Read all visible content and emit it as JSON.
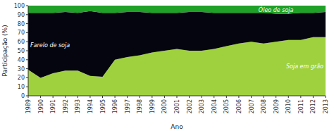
{
  "chart_data": {
    "type": "area",
    "stacked": true,
    "x": [
      1989,
      1990,
      1991,
      1992,
      1993,
      1994,
      1995,
      1996,
      1997,
      1998,
      1999,
      2000,
      2001,
      2002,
      2003,
      2004,
      2005,
      2006,
      2007,
      2008,
      2009,
      2010,
      2011,
      2012,
      2013
    ],
    "series": [
      {
        "name": "Soja em grão",
        "color": "#9fd13e",
        "values": [
          29,
          20,
          25,
          28,
          28,
          22,
          21,
          40,
          43,
          45,
          48,
          50,
          52,
          50,
          50,
          52,
          55,
          58,
          60,
          58,
          60,
          62,
          62,
          65,
          65
        ]
      },
      {
        "name": "Farelo de soja",
        "color": "#050510",
        "values": [
          63,
          72,
          67,
          65,
          64,
          72,
          71,
          52,
          50,
          48,
          44,
          42,
          40,
          43,
          43,
          40,
          37,
          34,
          32,
          34,
          31,
          29,
          30,
          27,
          28
        ]
      },
      {
        "name": "Óleo de soja",
        "color": "#1fa026",
        "values": [
          8,
          8,
          8,
          7,
          8,
          6,
          8,
          8,
          7,
          7,
          8,
          8,
          8,
          7,
          7,
          8,
          8,
          8,
          8,
          8,
          9,
          9,
          8,
          8,
          7
        ]
      }
    ],
    "x_label": "Ano",
    "y_label": "Participação (%)",
    "xlim": [
      1989,
      2013
    ],
    "xticks": [
      1989,
      1990,
      1991,
      1992,
      1993,
      1994,
      1995,
      1996,
      1997,
      1998,
      1999,
      2000,
      2001,
      2002,
      2003,
      2004,
      2005,
      2006,
      2007,
      2008,
      2009,
      2010,
      2011,
      2012,
      2013
    ],
    "ylim": [
      0,
      100
    ],
    "yticks": [
      0,
      10,
      20,
      30,
      40,
      50,
      60,
      70,
      80,
      90,
      100
    ]
  }
}
